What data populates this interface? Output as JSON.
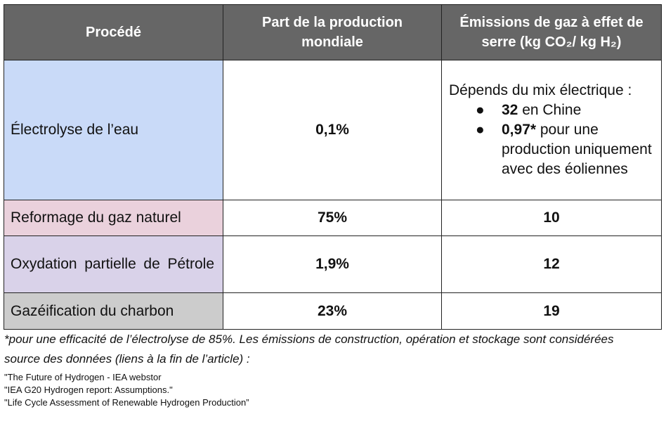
{
  "table": {
    "headers": [
      "Procédé",
      "Part de la production mondiale",
      "Émissions de gaz à effet de serre (kg CO₂/ kg H₂)"
    ],
    "rows": [
      {
        "process": "Électrolyse de l’eau",
        "share": "0,1%",
        "emissions_intro": "Dépends du mix électrique :",
        "emissions_items": [
          {
            "value": "32",
            "text": " en Chine"
          },
          {
            "value": "0,97*",
            "text": " pour une production uniquement avec des éoliennes"
          }
        ]
      },
      {
        "process": "Reformage du gaz naturel",
        "share": "75%",
        "emissions": "10"
      },
      {
        "process": "Oxydation partielle de Pétrole",
        "share": "1,9%",
        "emissions": "12"
      },
      {
        "process": "Gazéification du charbon",
        "share": "23%",
        "emissions": "19"
      }
    ],
    "row_colors": [
      "#c9daf8",
      "#ead1dc",
      "#d9d2e9",
      "#cccccc"
    ],
    "header_color": "#666666"
  },
  "notes": {
    "footnote": "*pour une efficacité de l’électrolyse de 85%. Les émissions de construction, opération et stockage sont considérées",
    "source_label": "source des données (liens à la fin de l’article) :",
    "sources": [
      "\"The Future of Hydrogen - IEA webstor",
      "\"IEA G20 Hydrogen report: Assumptions.\"",
      "\"Life Cycle Assessment of Renewable Hydrogen Production”"
    ]
  }
}
